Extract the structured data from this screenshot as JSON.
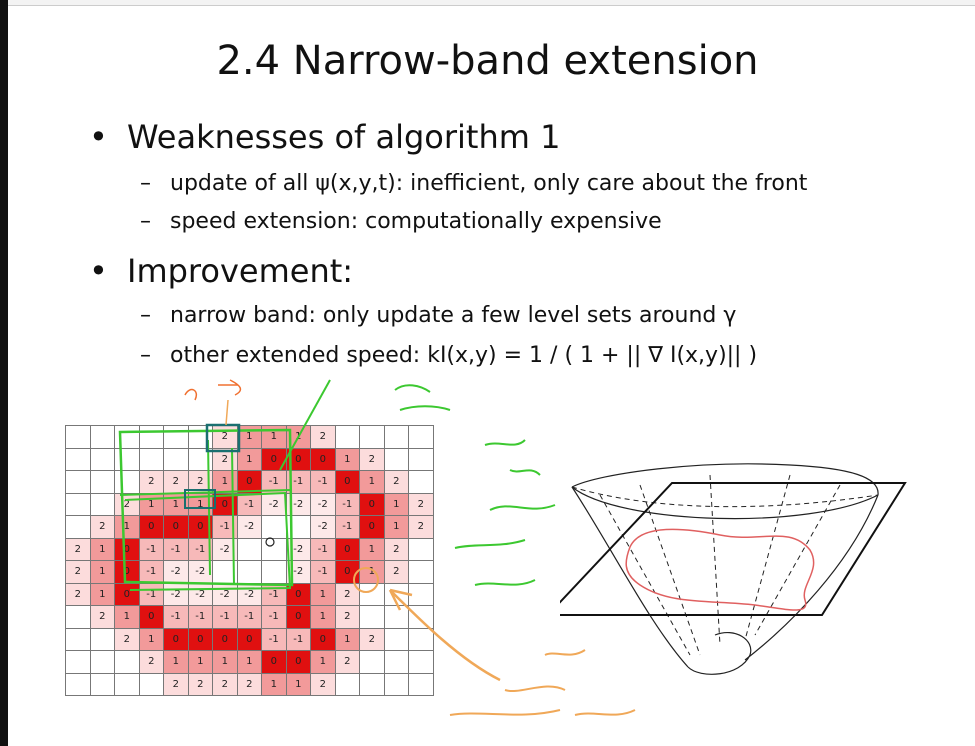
{
  "slide": {
    "title": "2.4 Narrow-band extension",
    "bullets": [
      {
        "heading": "Weaknesses of algorithm 1",
        "items": [
          "update of all ψ(x,y,t): inefficient, only care about the front",
          "speed extension: computationally expensive"
        ]
      },
      {
        "heading": "Improvement:",
        "items": [
          "narrow band: only update a few level sets around γ",
          "other extended speed: kI(x,y) = 1 / ( 1 + || ∇ I(x,y)|| )"
        ]
      }
    ],
    "bullet_glyph": "•",
    "dash_glyph": "–"
  },
  "grid": {
    "rows": [
      [
        "",
        "",
        "",
        "",
        "",
        "",
        "2",
        "1",
        "1",
        "1",
        "2",
        "",
        "",
        "",
        ""
      ],
      [
        "",
        "",
        "",
        "",
        "",
        "",
        "2",
        "1",
        "0",
        "0",
        "0",
        "1",
        "2",
        "",
        ""
      ],
      [
        "",
        "",
        "",
        "2",
        "2",
        "2",
        "1",
        "0",
        "-1",
        "-1",
        "-1",
        "0",
        "1",
        "2",
        ""
      ],
      [
        "",
        "",
        "2",
        "1",
        "1",
        "1",
        "0",
        "-1",
        "-2",
        "-2",
        "-2",
        "-1",
        "0",
        "1",
        "2"
      ],
      [
        "",
        "2",
        "1",
        "0",
        "0",
        "0",
        "-1",
        "-2",
        "",
        "",
        "-2",
        "-1",
        "0",
        "1",
        "2"
      ],
      [
        "2",
        "1",
        "0",
        "-1",
        "-1",
        "-1",
        "-2",
        "",
        "",
        "-2",
        "-1",
        "0",
        "1",
        "2",
        ""
      ],
      [
        "2",
        "1",
        "0",
        "-1",
        "-2",
        "-2",
        "",
        "",
        "",
        "-2",
        "-1",
        "0",
        "1",
        "2",
        ""
      ],
      [
        "2",
        "1",
        "0",
        "-1",
        "-2",
        "-2",
        "-2",
        "-2",
        "-1",
        "0",
        "1",
        "2",
        "",
        "",
        ""
      ],
      [
        "",
        "2",
        "1",
        "0",
        "-1",
        "-1",
        "-1",
        "-1",
        "-1",
        "0",
        "1",
        "2",
        "",
        "",
        ""
      ],
      [
        "",
        "",
        "2",
        "1",
        "0",
        "0",
        "0",
        "0",
        "-1",
        "-1",
        "0",
        "1",
        "2",
        "",
        ""
      ],
      [
        "",
        "",
        "",
        "2",
        "1",
        "1",
        "1",
        "1",
        "0",
        "0",
        "1",
        "2",
        "",
        "",
        ""
      ],
      [
        "",
        "",
        "",
        "",
        "2",
        "2",
        "2",
        "2",
        "1",
        "1",
        "2",
        "",
        "",
        "",
        ""
      ]
    ],
    "colors": {
      "0": "#e01010",
      "1": "#f29a9a",
      "2": "#fcdcdc",
      "-1": "#f7b9b9",
      "-2": "#fde9e9",
      "empty": "#ffffff"
    }
  },
  "annotation_colors": {
    "green": "#3cc830",
    "orange": "#f0a858",
    "teal": "#1a7070",
    "surface_curve": "#e06060"
  }
}
